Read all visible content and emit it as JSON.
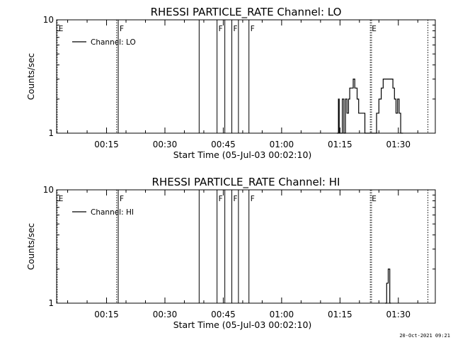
{
  "chart_data": [
    {
      "type": "line",
      "title": "RHESSI PARTICLE_RATE Channel: LO",
      "xlabel": "Start Time (05-Jul-03 00:02:10)",
      "ylabel": "Counts/sec",
      "yscale": "log",
      "xlim_minutes": [
        2.1667,
        99.5
      ],
      "ylim": [
        1,
        10
      ],
      "x_ticks": [
        {
          "minute": 15,
          "label": "00:15"
        },
        {
          "minute": 30,
          "label": "00:30"
        },
        {
          "minute": 45,
          "label": "00:45"
        },
        {
          "minute": 60,
          "label": "01:00"
        },
        {
          "minute": 75,
          "label": "01:15"
        },
        {
          "minute": 90,
          "label": "01:30"
        }
      ],
      "y_ticks": [
        {
          "value": 1,
          "label": "1"
        },
        {
          "value": 10,
          "label": "10"
        }
      ],
      "legend": {
        "label": "Channel: LO",
        "placement": "top-left"
      },
      "markers": [
        {
          "minute": 2.3,
          "style": "dotted",
          "label": "E"
        },
        {
          "minute": 17.6,
          "style": "dotted",
          "label": ""
        },
        {
          "minute": 18.0,
          "style": "solid",
          "label": "F"
        },
        {
          "minute": 38.8,
          "style": "solid",
          "label": ""
        },
        {
          "minute": 43.4,
          "style": "solid",
          "label": "F"
        },
        {
          "minute": 45.4,
          "style": "solid",
          "label": ""
        },
        {
          "minute": 47.2,
          "style": "solid",
          "label": "F"
        },
        {
          "minute": 48.9,
          "style": "solid",
          "label": ""
        },
        {
          "minute": 51.6,
          "style": "solid",
          "label": "F"
        },
        {
          "minute": 82.8,
          "style": "dotted",
          "label": "E"
        },
        {
          "minute": 83.1,
          "style": "dotted",
          "label": ""
        },
        {
          "minute": 97.6,
          "style": "dotted",
          "label": ""
        }
      ],
      "series": [
        {
          "x": [
            74.2,
            74.6,
            74.6,
            74.8,
            74.8,
            75.6,
            75.6,
            76.0,
            76.0,
            76.4,
            76.4,
            76.8,
            76.8,
            77.2,
            77.2,
            77.5,
            77.5,
            78.4,
            78.4,
            78.8,
            78.8,
            79.4,
            79.4,
            79.8,
            79.8,
            81.4,
            81.4,
            81.7,
            81.7,
            82.0,
            84.0,
            84.4,
            84.4,
            85.0,
            85.0,
            85.6,
            85.6,
            86.1,
            86.1,
            86.4,
            86.4,
            88.6,
            88.6,
            89.0,
            89.0,
            89.4,
            89.4,
            89.8,
            89.8,
            90.2,
            90.2,
            90.6,
            90.6,
            91.2
          ],
          "y": [
            1,
            1,
            2,
            2,
            1,
            1,
            2,
            2,
            1,
            1,
            2,
            2,
            1.5,
            1.5,
            2,
            2,
            2.5,
            2.5,
            3,
            3,
            2.5,
            2.5,
            2,
            2,
            1.5,
            1.5,
            1,
            1,
            1,
            1,
            1,
            1,
            1.5,
            1.5,
            2,
            2,
            2.5,
            2.5,
            3,
            3,
            3,
            3,
            2.5,
            2.5,
            2,
            2,
            1.5,
            1.5,
            2,
            2,
            1.5,
            1.5,
            1,
            1
          ]
        }
      ]
    },
    {
      "type": "line",
      "title": "RHESSI PARTICLE_RATE Channel: HI",
      "xlabel": "Start Time (05-Jul-03 00:02:10)",
      "ylabel": "Counts/sec",
      "yscale": "log",
      "xlim_minutes": [
        2.1667,
        99.5
      ],
      "ylim": [
        1,
        10
      ],
      "x_ticks": [
        {
          "minute": 15,
          "label": "00:15"
        },
        {
          "minute": 30,
          "label": "00:30"
        },
        {
          "minute": 45,
          "label": "00:45"
        },
        {
          "minute": 60,
          "label": "01:00"
        },
        {
          "minute": 75,
          "label": "01:15"
        },
        {
          "minute": 90,
          "label": "01:30"
        }
      ],
      "y_ticks": [
        {
          "value": 1,
          "label": "1"
        },
        {
          "value": 10,
          "label": "10"
        }
      ],
      "legend": {
        "label": "Channel: HI",
        "placement": "top-left"
      },
      "markers": [
        {
          "minute": 2.3,
          "style": "dotted",
          "label": "E"
        },
        {
          "minute": 17.6,
          "style": "dotted",
          "label": ""
        },
        {
          "minute": 18.0,
          "style": "solid",
          "label": "F"
        },
        {
          "minute": 38.8,
          "style": "solid",
          "label": ""
        },
        {
          "minute": 43.4,
          "style": "solid",
          "label": "F"
        },
        {
          "minute": 45.4,
          "style": "solid",
          "label": ""
        },
        {
          "minute": 47.2,
          "style": "solid",
          "label": "F"
        },
        {
          "minute": 48.9,
          "style": "solid",
          "label": ""
        },
        {
          "minute": 51.6,
          "style": "solid",
          "label": "F"
        },
        {
          "minute": 82.8,
          "style": "dotted",
          "label": "E"
        },
        {
          "minute": 83.1,
          "style": "dotted",
          "label": ""
        },
        {
          "minute": 97.6,
          "style": "dotted",
          "label": ""
        }
      ],
      "series": [
        {
          "x": [
            86.6,
            87.0,
            87.0,
            87.4,
            87.4,
            87.8,
            87.8,
            88.1
          ],
          "y": [
            1,
            1,
            1.5,
            1.5,
            2,
            2,
            1,
            1
          ]
        }
      ]
    }
  ],
  "footer": {
    "timestamp": "20-Oct-2021 09:21"
  }
}
